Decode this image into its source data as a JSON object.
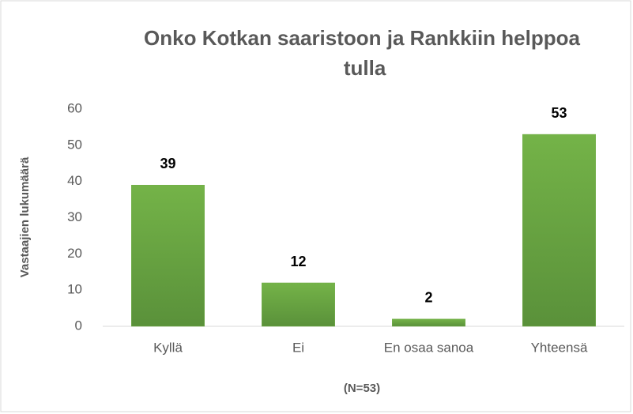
{
  "chart_data": {
    "type": "bar",
    "title": "Onko Kotkan saaristoon ja Rankkiin helppoa tulla",
    "y_label": "Vastaajien lukumäärä",
    "x_label": "(N=53)",
    "categories": [
      "Kyllä",
      "Ei",
      "En osaa sanoa",
      "Yhteensä"
    ],
    "values": [
      39,
      12,
      2,
      53
    ],
    "color": "#70ad47",
    "ylim": [
      0,
      60
    ],
    "yticks": [
      0,
      10,
      20,
      30,
      40,
      50,
      60
    ],
    "grid": false
  }
}
